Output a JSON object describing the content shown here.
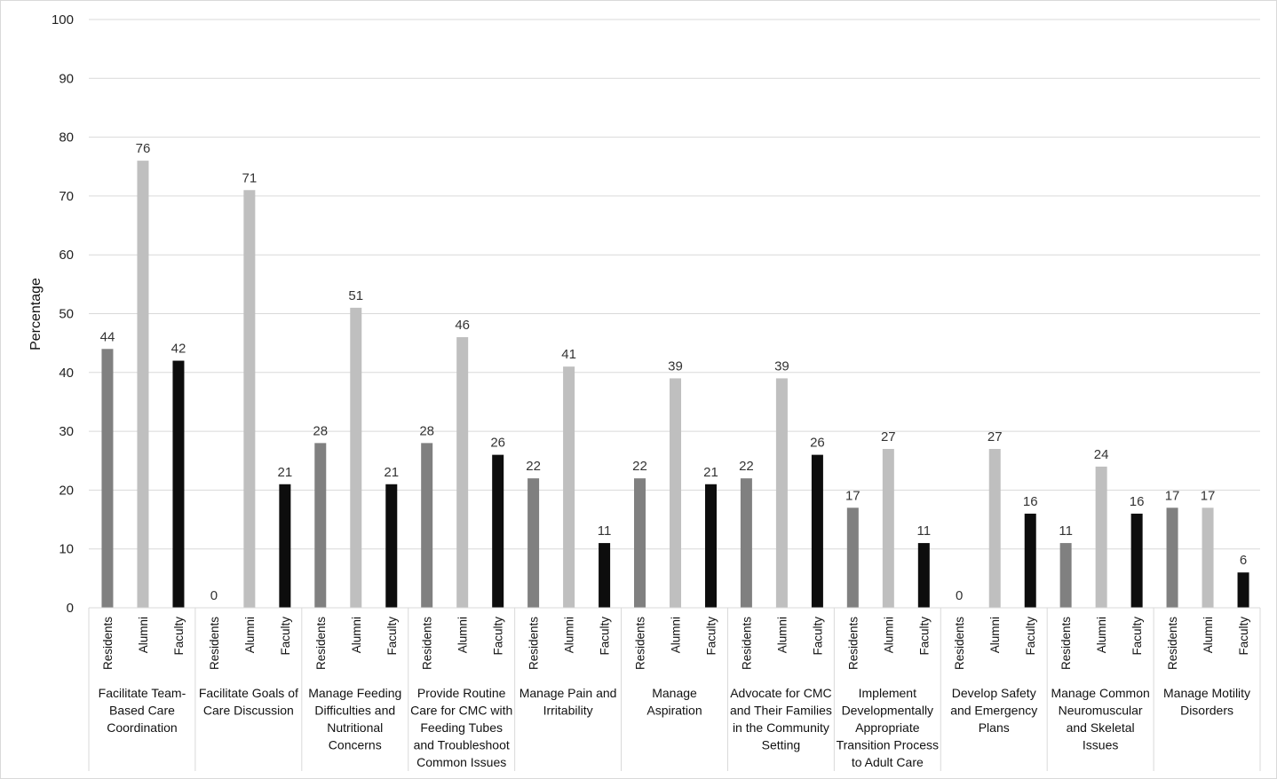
{
  "chart_data": {
    "type": "bar",
    "title": "",
    "xlabel": "",
    "ylabel": "Percentage",
    "ylim": [
      0,
      100
    ],
    "yticks": [
      0,
      10,
      20,
      30,
      40,
      50,
      60,
      70,
      80,
      90,
      100
    ],
    "grid": true,
    "legend": "none",
    "series_labels": [
      "Residents",
      "Alumni",
      "Faculty"
    ],
    "series_colors": [
      "#808080",
      "#bfbfbf",
      "#0d0d0d"
    ],
    "categories": [
      "Facilitate Team-Based Care Coordination",
      "Facilitate Goals of Care Discussion",
      "Manage Feeding Difficulties and Nutritional Concerns",
      "Provide Routine Care for CMC with Feeding Tubes and Troubleshoot Common Issues",
      "Manage Pain and Irritability",
      "Manage Aspiration",
      "Advocate for CMC and Their Families in the Community Setting",
      "Implement Developmentally Appropriate Transition Process to Adult Care",
      "Develop Safety and Emergency Plans",
      "Manage Common Neuromuscular and Skeletal Issues",
      "Manage Motility Disorders"
    ],
    "category_lines": [
      [
        "Facilitate Team-",
        "Based Care",
        "Coordination"
      ],
      [
        "Facilitate Goals of",
        "Care Discussion"
      ],
      [
        "Manage Feeding",
        "Difficulties and",
        "Nutritional",
        "Concerns"
      ],
      [
        "Provide Routine",
        "Care for CMC with",
        "Feeding Tubes",
        "and Troubleshoot",
        "Common Issues"
      ],
      [
        "Manage Pain and",
        "Irritability"
      ],
      [
        "Manage",
        "Aspiration"
      ],
      [
        "Advocate for CMC",
        "and Their Families",
        "in the Community",
        "Setting"
      ],
      [
        "Implement",
        "Developmentally",
        "Appropriate",
        "Transition Process",
        "to Adult Care"
      ],
      [
        "Develop Safety",
        "and Emergency",
        "Plans"
      ],
      [
        "Manage Common",
        "Neuromuscular",
        "and Skeletal",
        "Issues"
      ],
      [
        "Manage Motility",
        "Disorders"
      ]
    ],
    "series": [
      {
        "name": "Residents",
        "values": [
          44,
          0,
          28,
          28,
          22,
          22,
          22,
          17,
          0,
          11,
          17
        ]
      },
      {
        "name": "Alumni",
        "values": [
          76,
          71,
          51,
          46,
          41,
          39,
          39,
          27,
          27,
          24,
          17
        ]
      },
      {
        "name": "Faculty",
        "values": [
          42,
          21,
          21,
          26,
          11,
          21,
          26,
          11,
          16,
          16,
          6
        ]
      }
    ]
  }
}
